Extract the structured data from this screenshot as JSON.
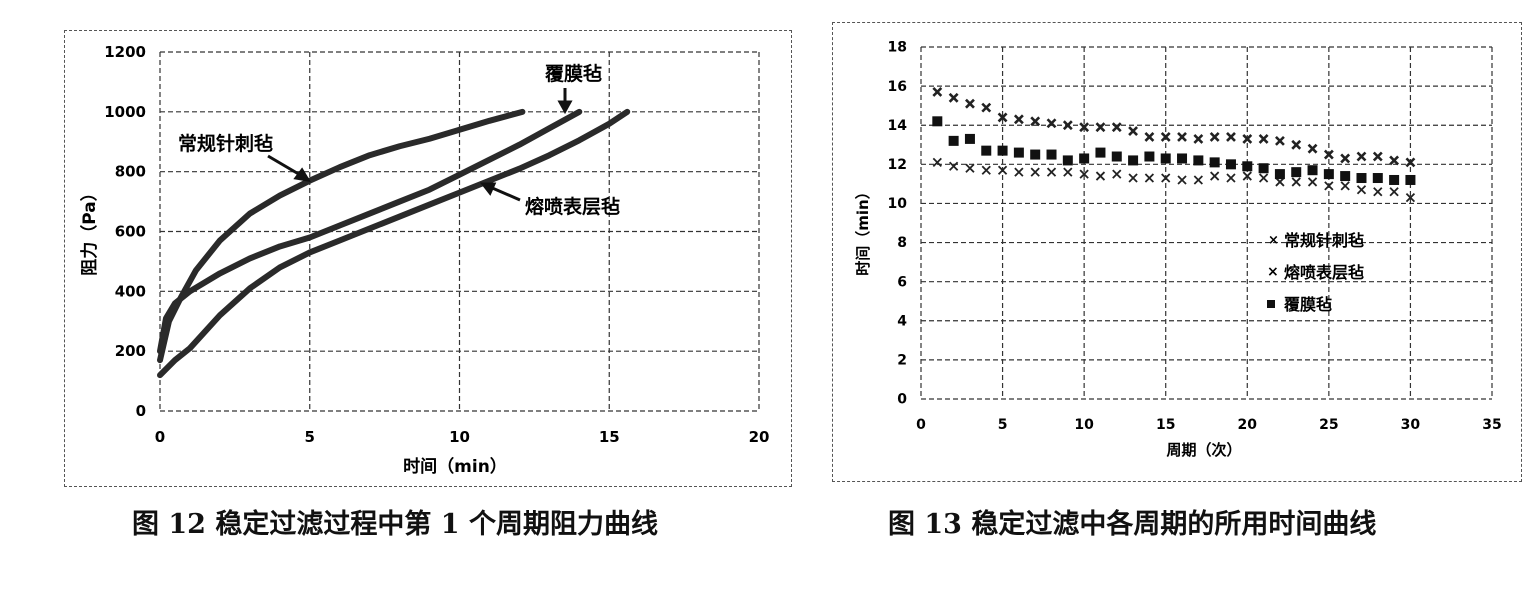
{
  "chart_data": [
    {
      "type": "line",
      "title": "图 12 稳定过滤过程中第 1 个周期阻力曲线",
      "xlabel": "时间（min）",
      "ylabel": "阻力（Pa）",
      "xlim": [
        0,
        20
      ],
      "ylim": [
        0,
        1200
      ],
      "xticks": [
        0,
        5,
        10,
        15,
        20
      ],
      "yticks": [
        0,
        200,
        400,
        600,
        800,
        1000,
        1200
      ],
      "grid": true,
      "legend_position": "inline annotations with arrows",
      "series": [
        {
          "name": "常规针刺毡",
          "x": [
            0,
            0.3,
            0.7,
            1.2,
            2,
            3,
            4,
            5,
            6,
            7,
            8,
            9,
            10,
            11,
            12.1
          ],
          "y": [
            170,
            300,
            380,
            470,
            570,
            660,
            720,
            770,
            815,
            855,
            885,
            910,
            940,
            970,
            1000
          ]
        },
        {
          "name": "覆膜毡",
          "x": [
            0,
            0.2,
            0.5,
            1,
            2,
            3,
            4,
            5,
            6,
            7,
            8,
            9,
            10,
            11,
            12,
            13,
            14
          ],
          "y": [
            200,
            310,
            360,
            400,
            460,
            510,
            550,
            580,
            620,
            660,
            700,
            740,
            790,
            840,
            890,
            945,
            1000
          ]
        },
        {
          "name": "熔喷表层毡",
          "x": [
            0,
            0.5,
            1,
            2,
            3,
            4,
            5,
            6,
            7,
            8,
            9,
            10,
            11,
            12,
            13,
            14,
            15,
            15.6
          ],
          "y": [
            120,
            170,
            210,
            320,
            410,
            480,
            530,
            570,
            610,
            650,
            690,
            730,
            770,
            810,
            855,
            905,
            960,
            1000
          ]
        }
      ],
      "annotations": [
        {
          "text": "常规针刺毡",
          "arrow_to": [
            5,
            770
          ]
        },
        {
          "text": "覆膜毡",
          "arrow_to": [
            13.6,
            1000
          ]
        },
        {
          "text": "熔喷表层毡",
          "arrow_to": [
            10.8,
            760
          ]
        }
      ]
    },
    {
      "type": "scatter",
      "title": "图 13 稳定过滤中各周期的所用时间曲线",
      "xlabel": "周期（次）",
      "ylabel": "时间（min）",
      "xlim": [
        0,
        35
      ],
      "ylim": [
        0,
        18
      ],
      "xticks": [
        0,
        5,
        10,
        15,
        20,
        25,
        30,
        35
      ],
      "yticks": [
        0,
        2,
        4,
        6,
        8,
        10,
        12,
        14,
        16,
        18
      ],
      "grid": true,
      "legend_position": "center-right",
      "categories": [
        1,
        2,
        3,
        4,
        5,
        6,
        7,
        8,
        9,
        10,
        11,
        12,
        13,
        14,
        15,
        16,
        17,
        18,
        19,
        20,
        21,
        22,
        23,
        24,
        25,
        26,
        27,
        28,
        29,
        30
      ],
      "series": [
        {
          "name": "常规针刺毡",
          "marker": "x",
          "values": [
            12.1,
            11.9,
            11.8,
            11.7,
            11.7,
            11.6,
            11.6,
            11.6,
            11.6,
            11.5,
            11.4,
            11.5,
            11.3,
            11.3,
            11.3,
            11.2,
            11.2,
            11.4,
            11.3,
            11.4,
            11.3,
            11.1,
            11.1,
            11.1,
            10.9,
            10.9,
            10.7,
            10.6,
            10.6,
            10.3
          ]
        },
        {
          "name": "熔喷表层毡",
          "marker": "bold-x",
          "values": [
            15.7,
            15.4,
            15.1,
            14.9,
            14.4,
            14.3,
            14.2,
            14.1,
            14.0,
            13.9,
            13.9,
            13.9,
            13.7,
            13.4,
            13.4,
            13.4,
            13.3,
            13.4,
            13.4,
            13.3,
            13.3,
            13.2,
            13.0,
            12.8,
            12.5,
            12.3,
            12.4,
            12.4,
            12.2,
            12.1
          ]
        },
        {
          "name": "覆膜毡",
          "marker": "square",
          "values": [
            14.2,
            13.2,
            13.3,
            12.7,
            12.7,
            12.6,
            12.5,
            12.5,
            12.2,
            12.3,
            12.6,
            12.4,
            12.2,
            12.4,
            12.3,
            12.3,
            12.2,
            12.1,
            12.0,
            11.9,
            11.8,
            11.5,
            11.6,
            11.7,
            11.5,
            11.4,
            11.3,
            11.3,
            11.2,
            11.2
          ]
        }
      ]
    }
  ],
  "fig12": {
    "caption": "图 12  稳定过滤过程中第 1 个周期阻力曲线",
    "xlabel": "时间（min）",
    "ylabel": "阻力（Pa）",
    "yticks": [
      "0",
      "200",
      "400",
      "600",
      "800",
      "1000",
      "1200"
    ],
    "xticks": [
      "0",
      "5",
      "10",
      "15",
      "20"
    ],
    "ann1": "常规针刺毡",
    "ann2": "覆膜毡",
    "ann3": "熔喷表层毡"
  },
  "fig13": {
    "caption": "图 13  稳定过滤中各周期的所用时间曲线",
    "xlabel": "周期（次）",
    "ylabel": "时间（min）",
    "yticks": [
      "0",
      "2",
      "4",
      "6",
      "8",
      "10",
      "12",
      "14",
      "16",
      "18"
    ],
    "xticks": [
      "0",
      "5",
      "10",
      "15",
      "20",
      "25",
      "30",
      "35"
    ],
    "legend": [
      "常规针刺毡",
      "熔喷表层毡",
      "覆膜毡"
    ]
  },
  "colors": {
    "ink": "#1a1a1a",
    "grid": "#333333",
    "frame": "#555555"
  }
}
